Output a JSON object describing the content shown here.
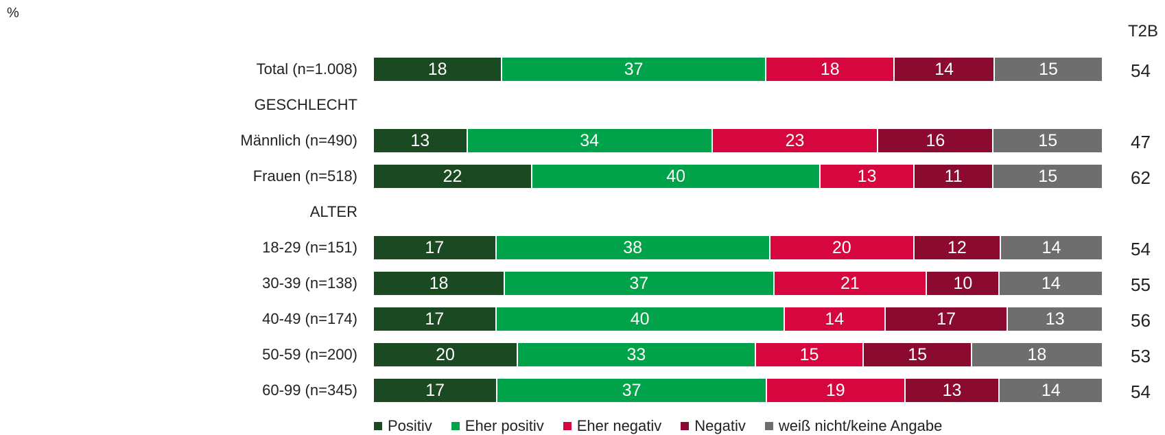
{
  "unit_label": "%",
  "t2b_header": "T2B",
  "colors": {
    "positiv": "#1b4a22",
    "eher_positiv": "#00a34a",
    "eher_negativ": "#d6063f",
    "negativ": "#8a0a30",
    "weiss_nicht": "#6e6e6e"
  },
  "chart_data": {
    "type": "bar",
    "orientation": "horizontal-stacked-100",
    "series": [
      {
        "name": "Positiv",
        "color_key": "positiv"
      },
      {
        "name": "Eher positiv",
        "color_key": "eher_positiv"
      },
      {
        "name": "Eher negativ",
        "color_key": "eher_negativ"
      },
      {
        "name": "Negativ",
        "color_key": "negativ"
      },
      {
        "name": "weiß nicht/keine Angabe",
        "color_key": "weiss_nicht"
      }
    ],
    "rows": [
      {
        "label": "Total (n=1.008)",
        "values": [
          18,
          37,
          18,
          14,
          15
        ],
        "t2b": "54"
      },
      {
        "label": "GESCHLECHT",
        "section": true
      },
      {
        "label": "Männlich (n=490)",
        "values": [
          13,
          34,
          23,
          16,
          15
        ],
        "t2b": "47"
      },
      {
        "label": "Frauen (n=518)",
        "values": [
          22,
          40,
          13,
          11,
          15
        ],
        "t2b": "62"
      },
      {
        "label": "ALTER",
        "section": true
      },
      {
        "label": "18-29 (n=151)",
        "values": [
          17,
          38,
          20,
          12,
          14
        ],
        "t2b": "54"
      },
      {
        "label": "30-39 (n=138)",
        "values": [
          18,
          37,
          21,
          10,
          14
        ],
        "t2b": "55"
      },
      {
        "label": "40-49 (n=174)",
        "values": [
          17,
          40,
          14,
          17,
          13
        ],
        "t2b": "56"
      },
      {
        "label": "50-59 (n=200)",
        "values": [
          20,
          33,
          15,
          15,
          18
        ],
        "t2b": "53"
      },
      {
        "label": "60-99 (n=345)",
        "values": [
          17,
          37,
          19,
          13,
          14
        ],
        "t2b": "54"
      }
    ],
    "legend_position": "bottom",
    "grid": false
  }
}
